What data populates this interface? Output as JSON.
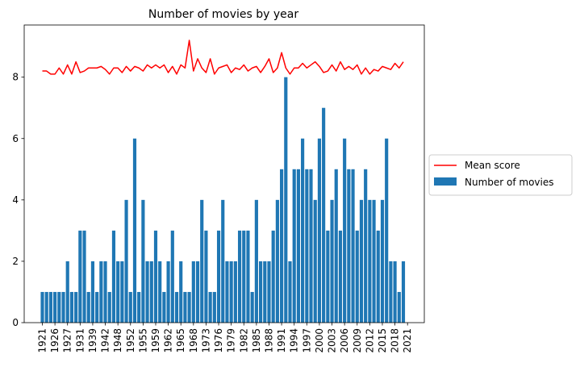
{
  "chart_data": {
    "type": "bar",
    "title": "Number of movies by year",
    "xlabel": "",
    "ylabel": "",
    "ylim": [
      0,
      9.7
    ],
    "y_ticks": [
      0,
      2,
      4,
      6,
      8
    ],
    "grid": false,
    "legend_position": "outside-right",
    "colors": {
      "bars": "#1f77b4",
      "line": "#ff0000"
    },
    "x_tick_labels": [
      "1921",
      "1926",
      "1927",
      "1931",
      "1939",
      "1942",
      "1948",
      "1952",
      "1955",
      "1959",
      "1962",
      "1965",
      "1968",
      "1973",
      "1976",
      "1979",
      "1982",
      "1985",
      "1988",
      "1991",
      "1994",
      "1997",
      "2000",
      "2003",
      "2006",
      "2009",
      "2012",
      "2015",
      "2018",
      "2021"
    ],
    "series": [
      {
        "name": "Number of movies",
        "type": "bar",
        "values": [
          1,
          1,
          1,
          1,
          1,
          1,
          2,
          1,
          1,
          3,
          3,
          1,
          2,
          1,
          2,
          2,
          1,
          3,
          2,
          2,
          4,
          1,
          6,
          1,
          4,
          2,
          2,
          3,
          2,
          1,
          2,
          3,
          1,
          2,
          1,
          1,
          2,
          2,
          4,
          3,
          1,
          1,
          3,
          4,
          2,
          2,
          2,
          3,
          3,
          3,
          1,
          4,
          2,
          2,
          2,
          3,
          4,
          5,
          8,
          2,
          5,
          5,
          6,
          5,
          5,
          4,
          6,
          7,
          3,
          4,
          5,
          3,
          6,
          5,
          5,
          3,
          4,
          5,
          4,
          4,
          3,
          4,
          6,
          2,
          2,
          1,
          2
        ]
      },
      {
        "name": "Mean score",
        "type": "line",
        "values": [
          8.2,
          8.2,
          8.1,
          8.1,
          8.3,
          8.1,
          8.4,
          8.1,
          8.5,
          8.15,
          8.2,
          8.3,
          8.3,
          8.3,
          8.35,
          8.25,
          8.1,
          8.3,
          8.3,
          8.15,
          8.35,
          8.2,
          8.35,
          8.3,
          8.2,
          8.4,
          8.3,
          8.4,
          8.3,
          8.4,
          8.15,
          8.35,
          8.1,
          8.4,
          8.3,
          9.2,
          8.2,
          8.6,
          8.3,
          8.15,
          8.6,
          8.1,
          8.3,
          8.35,
          8.4,
          8.15,
          8.3,
          8.25,
          8.4,
          8.2,
          8.3,
          8.35,
          8.15,
          8.35,
          8.6,
          8.15,
          8.3,
          8.8,
          8.3,
          8.1,
          8.3,
          8.3,
          8.45,
          8.3,
          8.4,
          8.5,
          8.35,
          8.15,
          8.2,
          8.4,
          8.2,
          8.5,
          8.25,
          8.35,
          8.25,
          8.4,
          8.1,
          8.3,
          8.1,
          8.25,
          8.2,
          8.35,
          8.3,
          8.25,
          8.45,
          8.3,
          8.5
        ]
      }
    ]
  }
}
